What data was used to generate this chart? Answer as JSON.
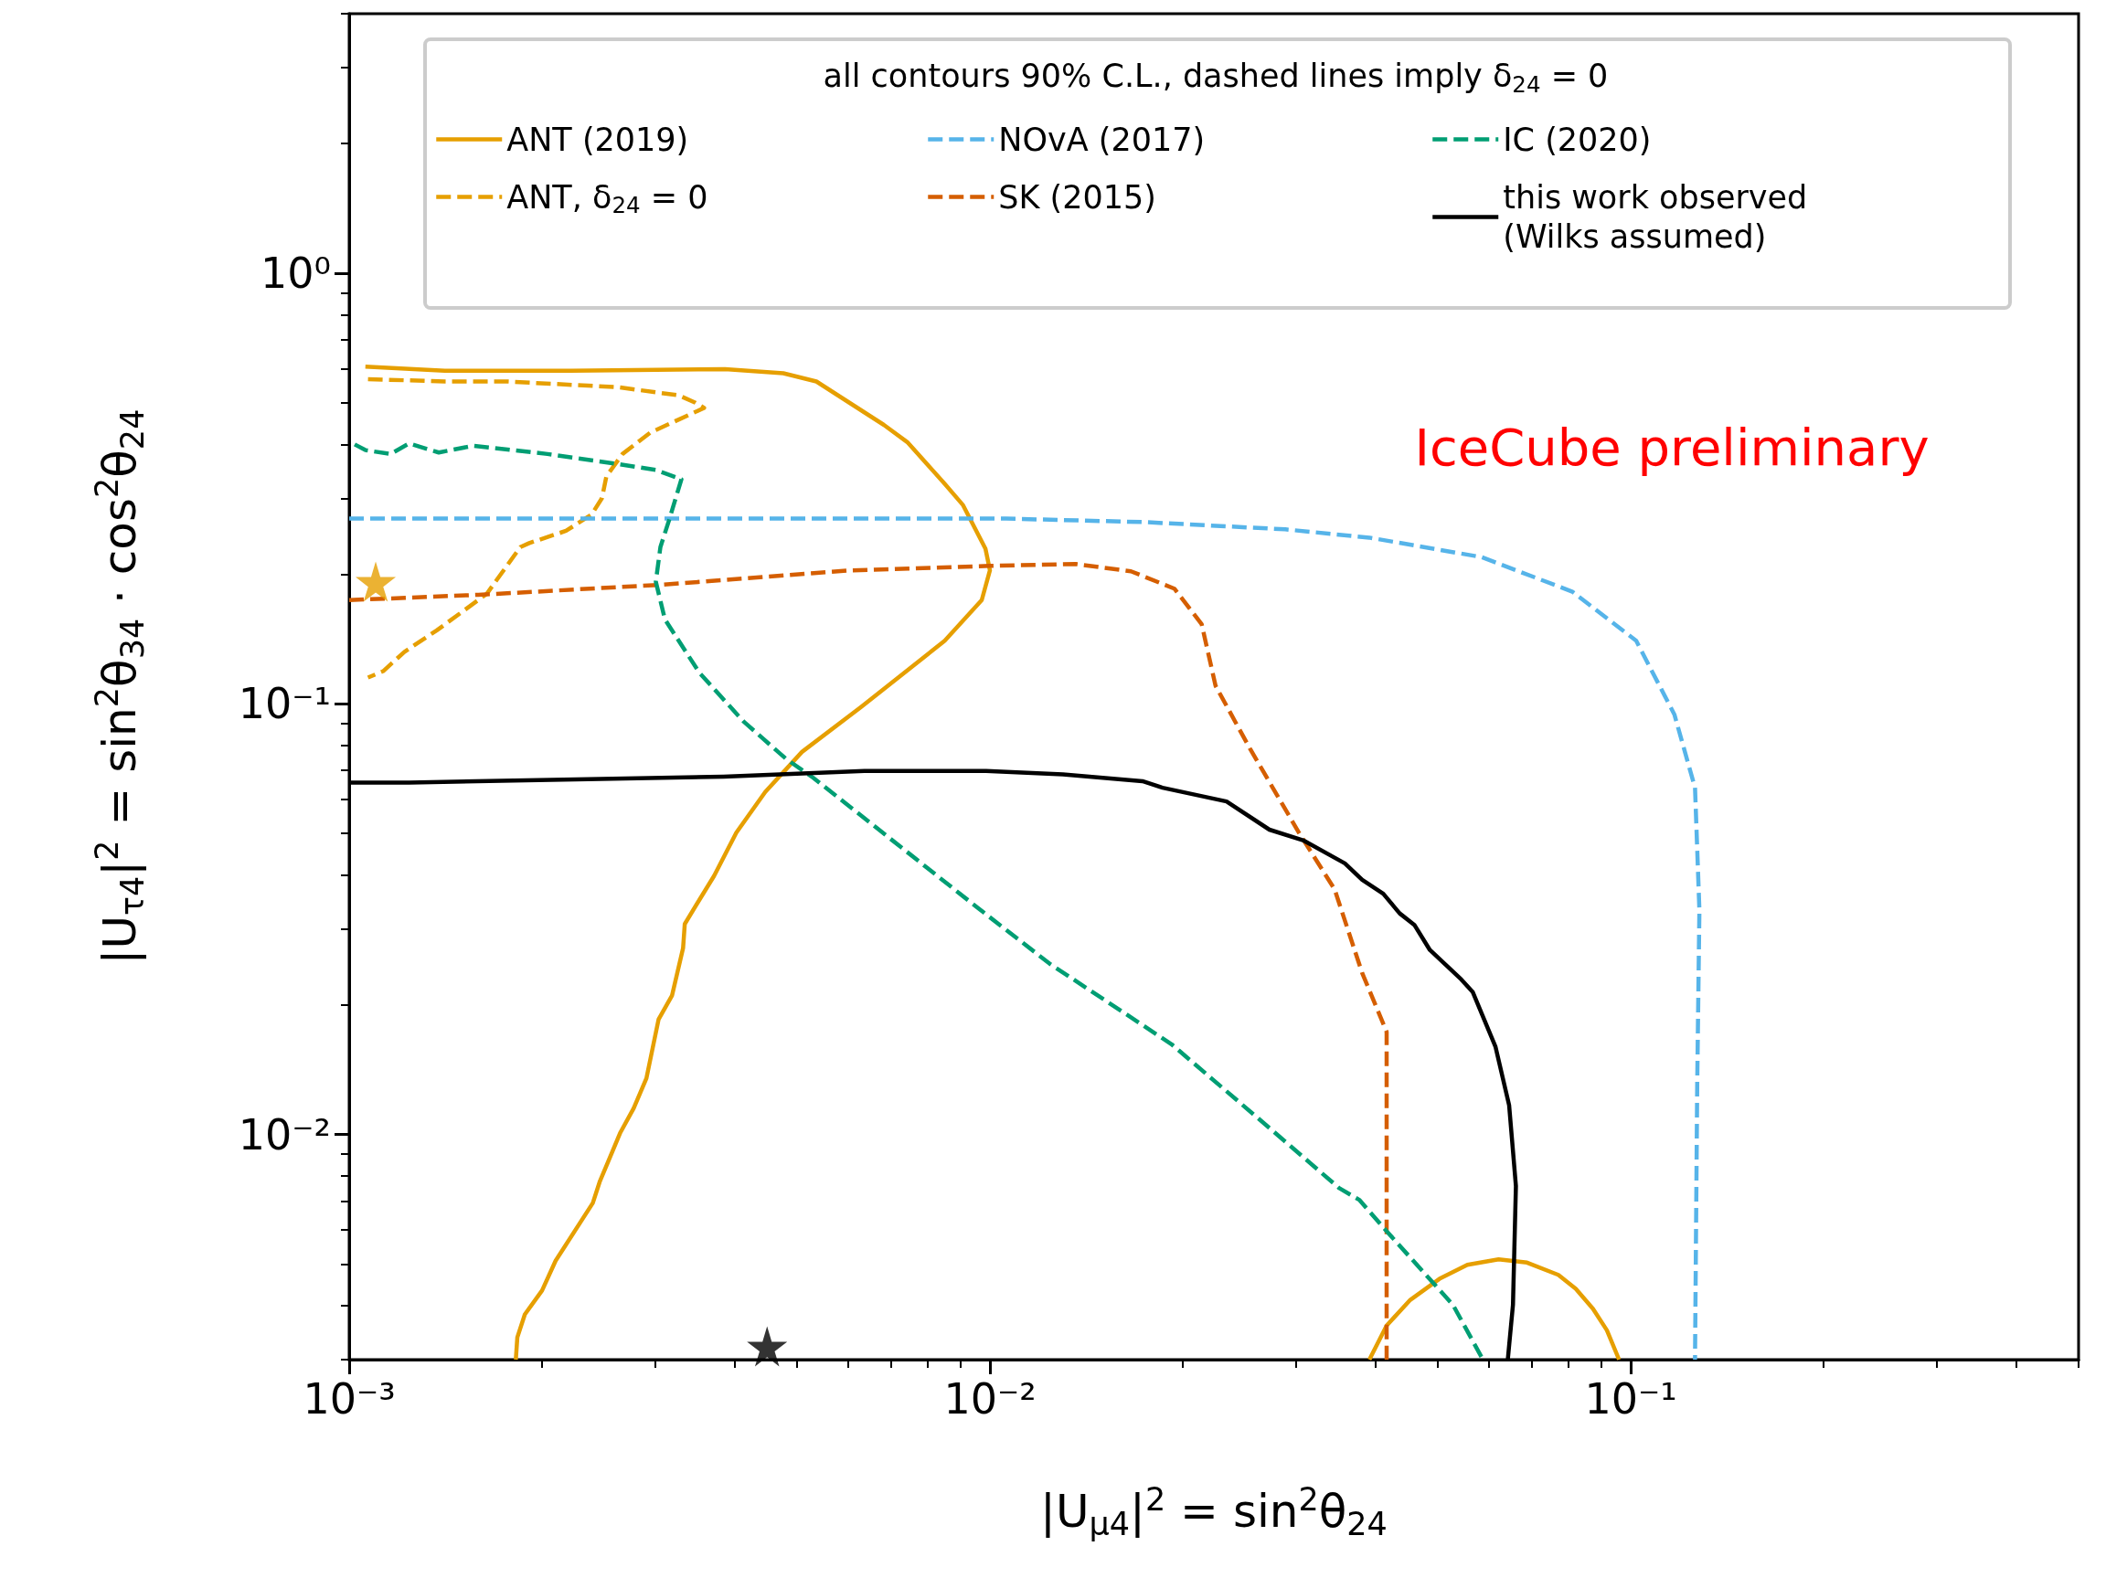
{
  "chart_data": {
    "type": "line",
    "xlabel": "|U$_{μ4}$|$^{2}$ = sin$^{2}$θ$_{24}$",
    "ylabel": "|U$_{τ4}$|$^{2}$ = sin$^{2}$θ$_{34}$ · cos$^{2}$θ$_{24}$",
    "legend_title": "all contours 90% C.L., dashed lines imply δ$_{24}$ = 0",
    "annotations": [
      "IceCube preliminary"
    ],
    "log": "xy",
    "grid": false,
    "legend": "top",
    "xlim": [
      0.001,
      0.5
    ],
    "ylim": [
      0.003,
      4
    ],
    "xticks": [
      {
        "value": 0.001,
        "label": "10⁻³"
      },
      {
        "value": 0.002,
        "label": null
      },
      {
        "value": 0.003,
        "label": null
      },
      {
        "value": 0.004,
        "label": null
      },
      {
        "value": 0.005,
        "label": null
      },
      {
        "value": 0.006,
        "label": null
      },
      {
        "value": 0.007,
        "label": null
      },
      {
        "value": 0.008,
        "label": null
      },
      {
        "value": 0.009,
        "label": null
      },
      {
        "value": 0.01,
        "label": "10⁻²"
      },
      {
        "value": 0.02,
        "label": null
      },
      {
        "value": 0.03,
        "label": null
      },
      {
        "value": 0.04,
        "label": null
      },
      {
        "value": 0.05,
        "label": null
      },
      {
        "value": 0.06,
        "label": null
      },
      {
        "value": 0.07,
        "label": null
      },
      {
        "value": 0.08,
        "label": null
      },
      {
        "value": 0.09,
        "label": null
      },
      {
        "value": 0.1,
        "label": "10⁻¹"
      },
      {
        "value": 0.2,
        "label": null
      },
      {
        "value": 0.3,
        "label": null
      },
      {
        "value": 0.4,
        "label": null
      },
      {
        "value": 0.5,
        "label": null
      }
    ],
    "yticks": [
      {
        "value": 0.003,
        "label": null
      },
      {
        "value": 0.004,
        "label": null
      },
      {
        "value": 0.005,
        "label": null
      },
      {
        "value": 0.006,
        "label": null
      },
      {
        "value": 0.007,
        "label": null
      },
      {
        "value": 0.008,
        "label": null
      },
      {
        "value": 0.009,
        "label": null
      },
      {
        "value": 0.01,
        "label": "10⁻²"
      },
      {
        "value": 0.02,
        "label": null
      },
      {
        "value": 0.03,
        "label": null
      },
      {
        "value": 0.04,
        "label": null
      },
      {
        "value": 0.05,
        "label": null
      },
      {
        "value": 0.06,
        "label": null
      },
      {
        "value": 0.07,
        "label": null
      },
      {
        "value": 0.08,
        "label": null
      },
      {
        "value": 0.09,
        "label": null
      },
      {
        "value": 0.1,
        "label": "10⁻¹"
      },
      {
        "value": 0.2,
        "label": null
      },
      {
        "value": 0.3,
        "label": null
      },
      {
        "value": 0.4,
        "label": null
      },
      {
        "value": 0.5,
        "label": null
      },
      {
        "value": 0.6,
        "label": null
      },
      {
        "value": 0.7,
        "label": null
      },
      {
        "value": 0.8,
        "label": null
      },
      {
        "value": 0.9,
        "label": null
      },
      {
        "value": 1,
        "label": "10⁰"
      },
      {
        "value": 2,
        "label": null
      },
      {
        "value": 3,
        "label": null
      },
      {
        "value": 4,
        "label": null
      }
    ],
    "series": [
      {
        "name": "ANT (2019)",
        "color": "#e69f00",
        "line_style": "solid",
        "marker": "none",
        "x": [
          0.00106,
          0.00141,
          0.00222,
          0.00386,
          0.00476,
          0.00536,
          0.00683,
          0.00743,
          0.0085,
          0.00908,
          0.00984,
          0.01,
          0.00971,
          0.0085,
          0.00628,
          0.00509,
          0.00446,
          0.00402,
          0.00371,
          0.00351,
          0.00334,
          0.00332,
          0.00319,
          0.00304,
          0.00291,
          0.00278,
          0.00265,
          0.00246,
          0.0024,
          0.0021,
          0.002,
          0.00188,
          0.00183,
          0.00182,
          null,
          0.0391,
          0.0416,
          0.0453,
          0.0503,
          0.0556,
          0.0622,
          0.0689,
          0.0771,
          0.0821,
          0.0873,
          0.0918,
          0.0959
        ],
        "values": [
          0.606,
          0.593,
          0.593,
          0.598,
          0.585,
          0.56,
          0.444,
          0.405,
          0.324,
          0.289,
          0.229,
          0.204,
          0.174,
          0.14,
          0.098,
          0.0773,
          0.0624,
          0.0502,
          0.0398,
          0.0348,
          0.0308,
          0.0271,
          0.021,
          0.0185,
          0.0135,
          0.0115,
          0.0101,
          0.00776,
          0.00693,
          0.00509,
          0.00434,
          0.00382,
          0.00338,
          0.003,
          null,
          0.003,
          0.0036,
          0.00413,
          0.00462,
          0.00498,
          0.00513,
          0.00504,
          0.00472,
          0.00438,
          0.00394,
          0.00351,
          0.003
        ]
      },
      {
        "name": "ANT, δ$_{24}$ = 0",
        "color": "#e69f00",
        "line_style": "dashed",
        "marker": "none",
        "x": [
          0.00107,
          0.00141,
          0.00176,
          0.00263,
          0.00327,
          0.00347,
          0.00358,
          0.00295,
          0.00267,
          0.00252,
          0.00248,
          0.00239,
          0.00218,
          0.00191,
          0.00185,
          0.0017,
          0.00164,
          0.00137,
          0.00122,
          0.00113,
          0.00107
        ],
        "values": [
          0.567,
          0.56,
          0.56,
          0.543,
          0.52,
          0.5,
          0.486,
          0.426,
          0.38,
          0.337,
          0.3,
          0.275,
          0.252,
          0.236,
          0.231,
          0.194,
          0.18,
          0.148,
          0.132,
          0.119,
          0.115
        ]
      },
      {
        "name": "NOvA (2017)",
        "color": "#56b4e9",
        "line_style": "dashed",
        "marker": "none",
        "x": [
          0.001,
          0.00318,
          0.0106,
          0.0175,
          0.0289,
          0.0391,
          0.0585,
          0.0811,
          0.102,
          0.117,
          0.126,
          0.128,
          0.127,
          0.126
        ],
        "values": [
          0.269,
          0.269,
          0.269,
          0.264,
          0.254,
          0.243,
          0.219,
          0.182,
          0.14,
          0.0944,
          0.0638,
          0.0332,
          0.0131,
          0.003
        ]
      },
      {
        "name": "SK (2015)",
        "color": "#d55e00",
        "line_style": "dashed",
        "marker": "none",
        "x": [
          0.001,
          0.00159,
          0.0031,
          0.00607,
          0.01,
          0.0136,
          0.0166,
          0.0194,
          0.0214,
          0.0225,
          0.0255,
          0.0304,
          0.0345,
          0.0381,
          0.0416,
          0.0416
        ],
        "values": [
          0.174,
          0.179,
          0.189,
          0.204,
          0.209,
          0.211,
          0.203,
          0.185,
          0.153,
          0.11,
          0.0783,
          0.05,
          0.0371,
          0.0237,
          0.0173,
          0.003
        ]
      },
      {
        "name": "IC (2020)",
        "color": "#009e73",
        "line_style": "dashed",
        "marker": "none",
        "x": [
          0.00102,
          0.00106,
          0.00116,
          0.00124,
          0.00138,
          0.00156,
          0.00204,
          0.00263,
          0.00301,
          0.0033,
          0.00316,
          0.00306,
          0.00301,
          0.00311,
          0.00352,
          0.00413,
          0.00481,
          0.0053,
          0.00964,
          0.0124,
          0.0192,
          0.0272,
          0.0351,
          0.0377,
          0.0416,
          0.0528,
          0.0588
        ],
        "values": [
          0.4,
          0.388,
          0.38,
          0.402,
          0.383,
          0.397,
          0.38,
          0.36,
          0.349,
          0.332,
          0.268,
          0.231,
          0.192,
          0.157,
          0.118,
          0.0908,
          0.0744,
          0.0673,
          0.0333,
          0.0249,
          0.0162,
          0.0104,
          0.0075,
          0.00705,
          0.00596,
          0.00402,
          0.003
        ]
      },
      {
        "name": "this work observed\n(Wilks assumed)",
        "color": "#000000",
        "line_style": "solid",
        "marker": "none",
        "x": [
          0.001,
          0.00124,
          0.00236,
          0.00384,
          0.00637,
          0.00986,
          0.013,
          0.0173,
          0.0186,
          0.0234,
          0.0273,
          0.0308,
          0.0358,
          0.0381,
          0.0411,
          0.0436,
          0.046,
          0.0486,
          0.0544,
          0.0567,
          0.0615,
          0.0646,
          0.0662,
          0.0655,
          0.0643
        ],
        "values": [
          0.0656,
          0.0656,
          0.0668,
          0.0677,
          0.0698,
          0.0698,
          0.0685,
          0.0661,
          0.0638,
          0.0593,
          0.051,
          0.0482,
          0.0426,
          0.039,
          0.0362,
          0.0326,
          0.0306,
          0.0268,
          0.0229,
          0.0214,
          0.016,
          0.0117,
          0.00759,
          0.00402,
          0.003
        ]
      },
      {
        "type": "scatter",
        "color": "#e69f00",
        "marker": "star",
        "x": [
          0.0011
        ],
        "values": [
          0.192
        ]
      },
      {
        "type": "scatter",
        "color": "#000000",
        "marker": "star",
        "x": [
          0.00449
        ],
        "values": [
          0.00322
        ]
      }
    ]
  }
}
